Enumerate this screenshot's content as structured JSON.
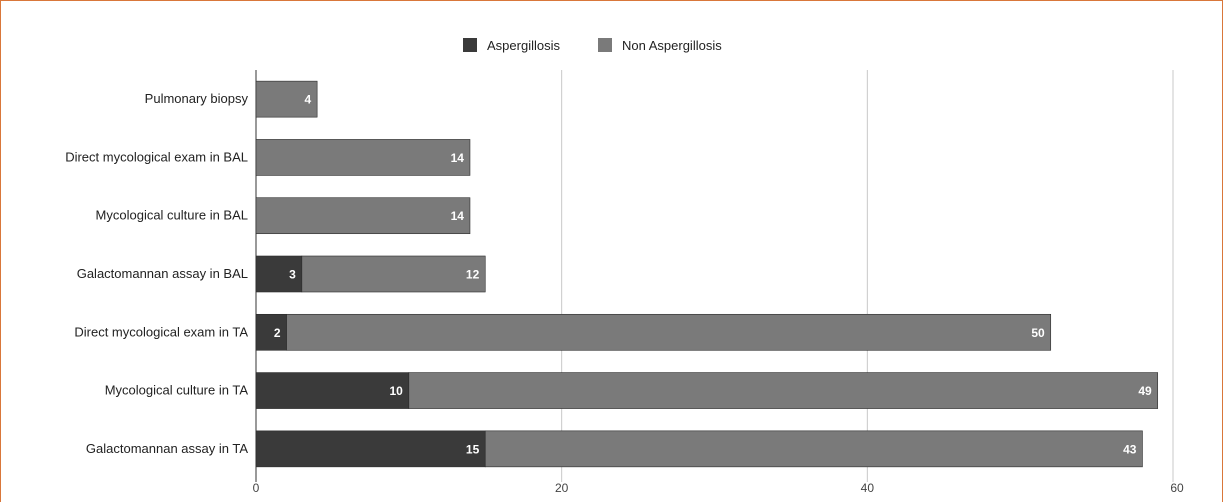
{
  "chart_data": {
    "type": "bar",
    "orientation": "horizontal",
    "stacked": true,
    "categories": [
      "Pulmonary biopsy",
      "Direct mycological exam in BAL",
      "Mycological culture in BAL",
      "Galactomannan assay in BAL",
      "Direct mycological exam in TA",
      "Mycological culture in TA",
      "Galactomannan assay in TA"
    ],
    "series": [
      {
        "name": "Aspergillosis",
        "color": "#3a3a3a",
        "values": [
          0,
          0,
          0,
          3,
          2,
          10,
          15
        ]
      },
      {
        "name": "Non Aspergillosis",
        "color": "#7a7a7a",
        "values": [
          4,
          14,
          14,
          12,
          50,
          49,
          43
        ]
      }
    ],
    "xlim": [
      0,
      60
    ],
    "xticks": [
      0,
      20,
      40,
      60
    ],
    "grid": true,
    "legend": "top-center",
    "data_labels": true
  }
}
